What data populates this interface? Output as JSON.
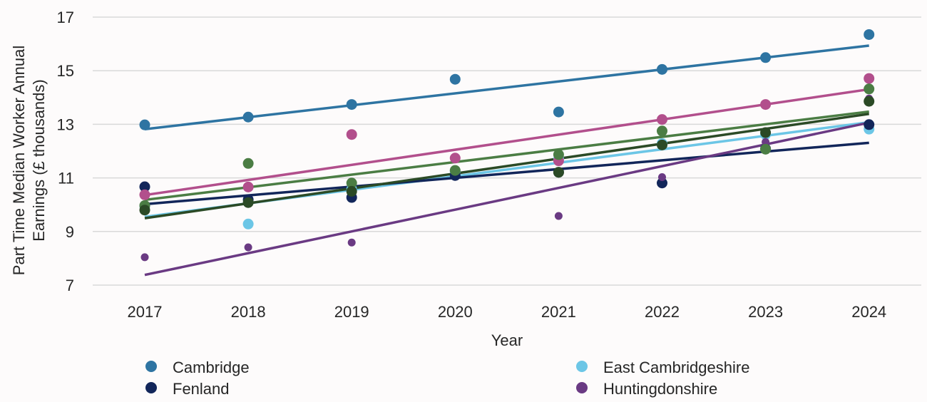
{
  "chart_data": {
    "type": "scatter",
    "title": "",
    "xlabel": "Year",
    "ylabel_lines": [
      "Part Time Median Worker Annual",
      "Earnings (£ thousands)"
    ],
    "x": [
      "2017",
      "2018",
      "2019",
      "2020",
      "2021",
      "2022",
      "2023",
      "2024"
    ],
    "ylim": [
      7,
      17
    ],
    "yticks": [
      "7",
      "9",
      "11",
      "13",
      "15",
      "17"
    ],
    "grid": "horizontal",
    "legend_position": "bottom",
    "trendlines": "linear",
    "series": [
      {
        "name": "Cambridge",
        "color": "#2e74a2",
        "marker_size": "large",
        "values": [
          12.98,
          13.27,
          13.74,
          14.68,
          13.46,
          15.05,
          15.49,
          16.35
        ]
      },
      {
        "name": "East Cambridgeshire",
        "color": "#6cc6e6",
        "marker_size": "large",
        "values": [
          9.95,
          9.28,
          10.58,
          11.25,
          11.72,
          12.28,
          12.62,
          12.82
        ]
      },
      {
        "name": "Fenland",
        "color": "#12265a",
        "marker_size": "large",
        "values": [
          10.67,
          10.19,
          10.27,
          11.09,
          11.21,
          10.81,
          12.09,
          12.99
        ]
      },
      {
        "name": "Huntingdonshire",
        "color": "#6a3a83",
        "marker_size": "small",
        "values": [
          8.04,
          8.41,
          8.59,
          null,
          9.58,
          11.03,
          12.34,
          13.96
        ]
      },
      {
        "name": "",
        "color": "#b24f8c",
        "marker_size": "large",
        "values": [
          10.37,
          10.66,
          12.62,
          11.74,
          11.64,
          13.18,
          13.74,
          14.71
        ]
      },
      {
        "name": "",
        "color": "#4b7d44",
        "marker_size": "large",
        "values": [
          9.97,
          11.54,
          10.81,
          11.28,
          11.87,
          12.75,
          12.07,
          14.32
        ]
      },
      {
        "name": "",
        "color": "#2b4a26",
        "marker_size": "large",
        "values": [
          9.8,
          10.08,
          10.5,
          null,
          11.21,
          12.23,
          12.69,
          13.86
        ]
      }
    ],
    "legend": [
      {
        "label": "Cambridge",
        "color": "#2e74a2"
      },
      {
        "label": "East Cambridgeshire",
        "color": "#6cc6e6"
      },
      {
        "label": "Fenland",
        "color": "#12265a"
      },
      {
        "label": "Huntingdonshire",
        "color": "#6a3a83"
      }
    ]
  }
}
